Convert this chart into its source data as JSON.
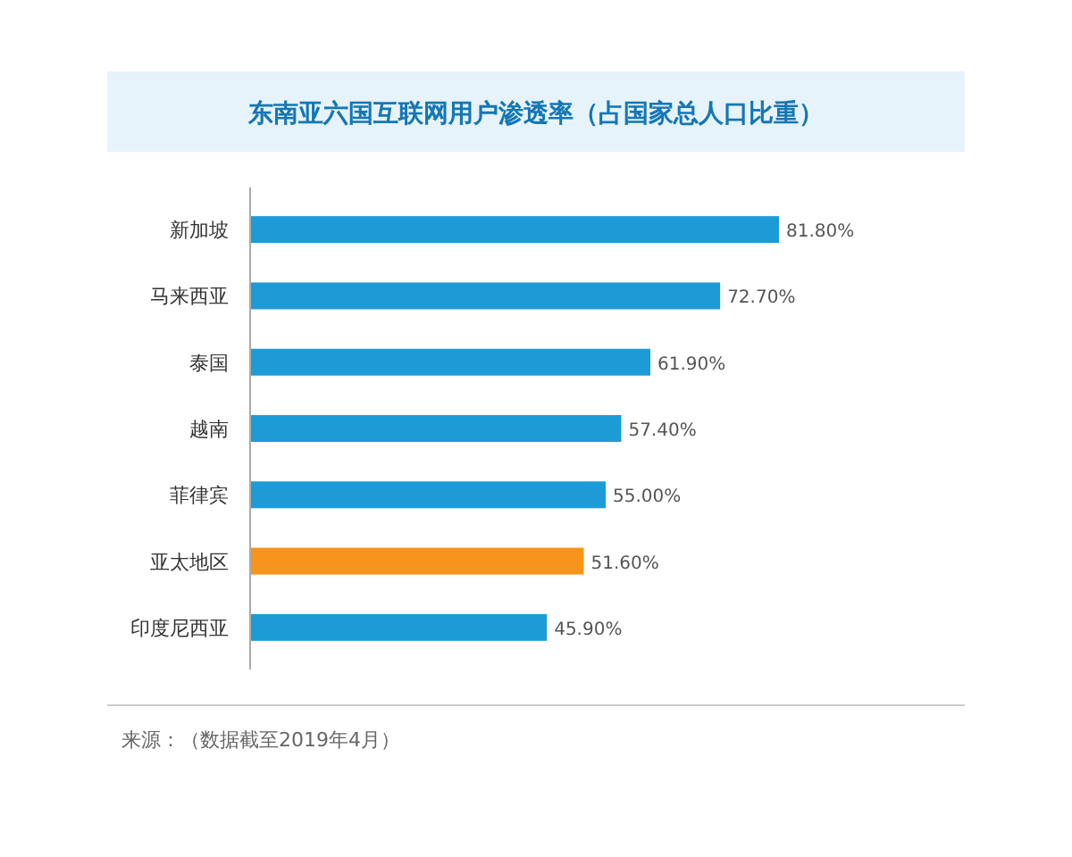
{
  "chart_data": {
    "type": "bar",
    "orientation": "horizontal",
    "title": "东南亚六国互联网用户渗透率（占国家总人口比重）",
    "categories": [
      "新加坡",
      "马来西亚",
      "泰国",
      "越南",
      "菲律宾",
      "亚太地区",
      "印度尼西亚"
    ],
    "values": [
      81.8,
      72.7,
      61.9,
      57.4,
      55.0,
      51.6,
      45.9
    ],
    "value_labels": [
      "81.80%",
      "72.70%",
      "61.90%",
      "57.40%",
      "55.00%",
      "51.60%",
      "45.90%"
    ],
    "colors": [
      "#1c9bd7",
      "#1c9bd7",
      "#1c9bd7",
      "#1c9bd7",
      "#1c9bd7",
      "#f7941d",
      "#1c9bd7"
    ],
    "annotations": [
      "来源：（数据截至2019年4月）"
    ]
  }
}
